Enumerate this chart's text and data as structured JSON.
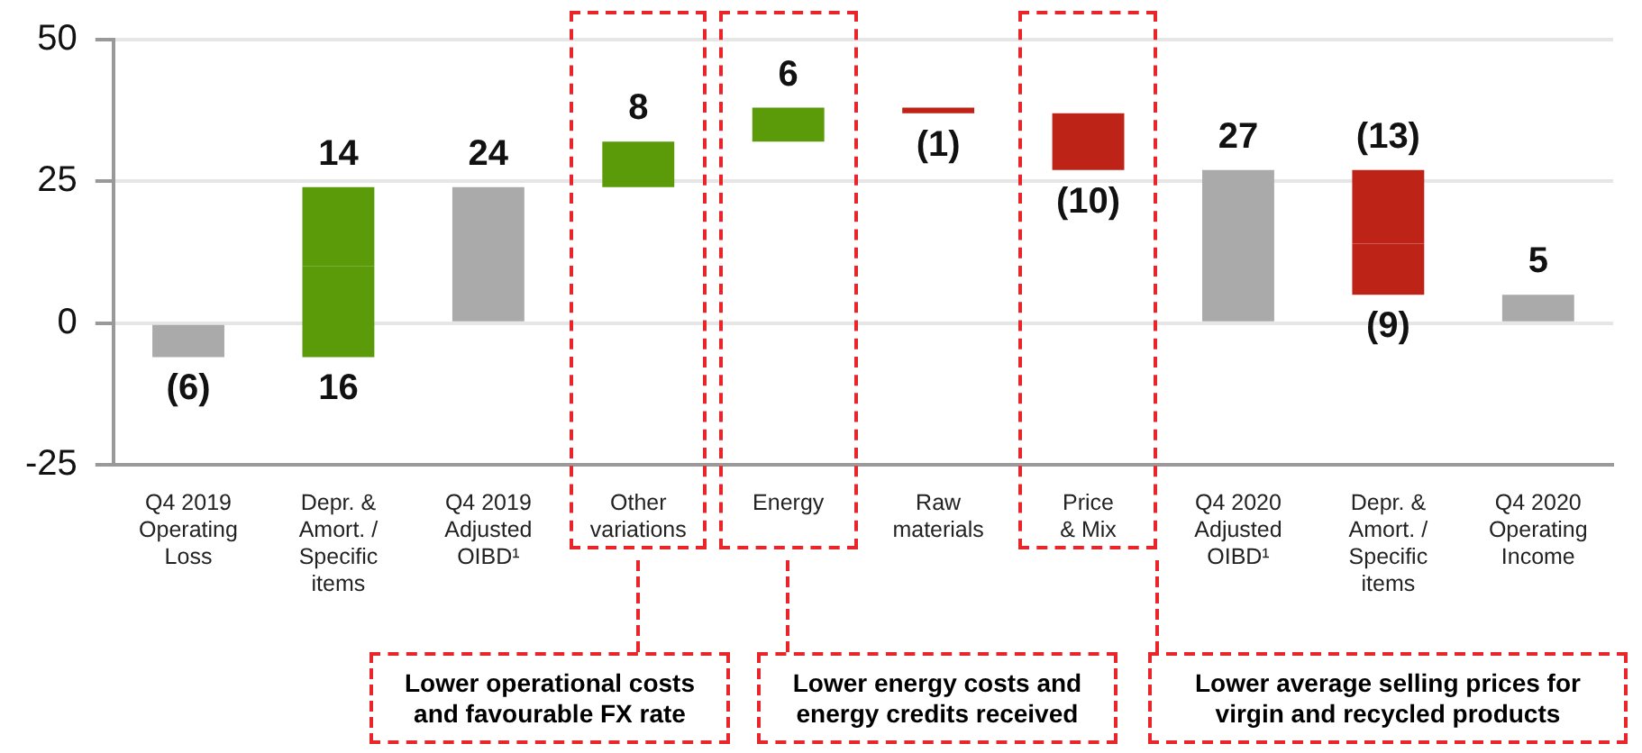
{
  "chart_data": {
    "type": "bar",
    "categories": [
      "Q4 2019\nOperating\nLoss",
      "Depr. &\nAmort. /\nSpecific\nitems",
      "Q4 2019\nAdjusted\nOIBD¹",
      "Other\nvariations",
      "Energy",
      "Raw\nmaterials",
      "Price\n& Mix",
      "Q4 2020\nAdjusted\nOIBD¹",
      "Depr. &\nAmort. /\nSpecific\nitems",
      "Q4 2020\nOperating\nIncome"
    ],
    "series": [
      {
        "base": [
          0,
          -6,
          0,
          24,
          32,
          38,
          37,
          0,
          27,
          0
        ],
        "values": [
          -6,
          16,
          24,
          8,
          6,
          -1,
          -10,
          27,
          -13,
          5
        ],
        "colors": [
          "#aaaaaa",
          "#5b9a08",
          "#aaaaaa",
          "#5b9a08",
          "#5b9a08",
          "#be2318",
          "#be2318",
          "#aaaaaa",
          "#be2318",
          "#aaaaaa"
        ],
        "value_labels": [
          "(6)",
          "16",
          "24",
          "8",
          "6",
          "(1)",
          "(10)",
          "27",
          "(13)",
          "5"
        ]
      },
      {
        "base": [
          null,
          10,
          null,
          null,
          null,
          null,
          null,
          null,
          14,
          null
        ],
        "values": [
          null,
          14,
          null,
          null,
          null,
          null,
          null,
          null,
          -9,
          null
        ],
        "colors": [
          null,
          "#5b9a08",
          null,
          null,
          null,
          null,
          null,
          null,
          "#be2318",
          null
        ],
        "value_labels": [
          null,
          "14",
          null,
          null,
          null,
          null,
          null,
          null,
          "(9)",
          null
        ]
      }
    ],
    "ylim": [
      -25,
      50
    ],
    "yticks": [
      -25,
      0,
      25,
      50
    ],
    "grid": "y",
    "legend": false,
    "annotations": [
      "Lower operational costs and favourable FX rate",
      "Lower energy costs and energy credits received",
      "Lower average selling prices for virgin and recycled products"
    ]
  }
}
